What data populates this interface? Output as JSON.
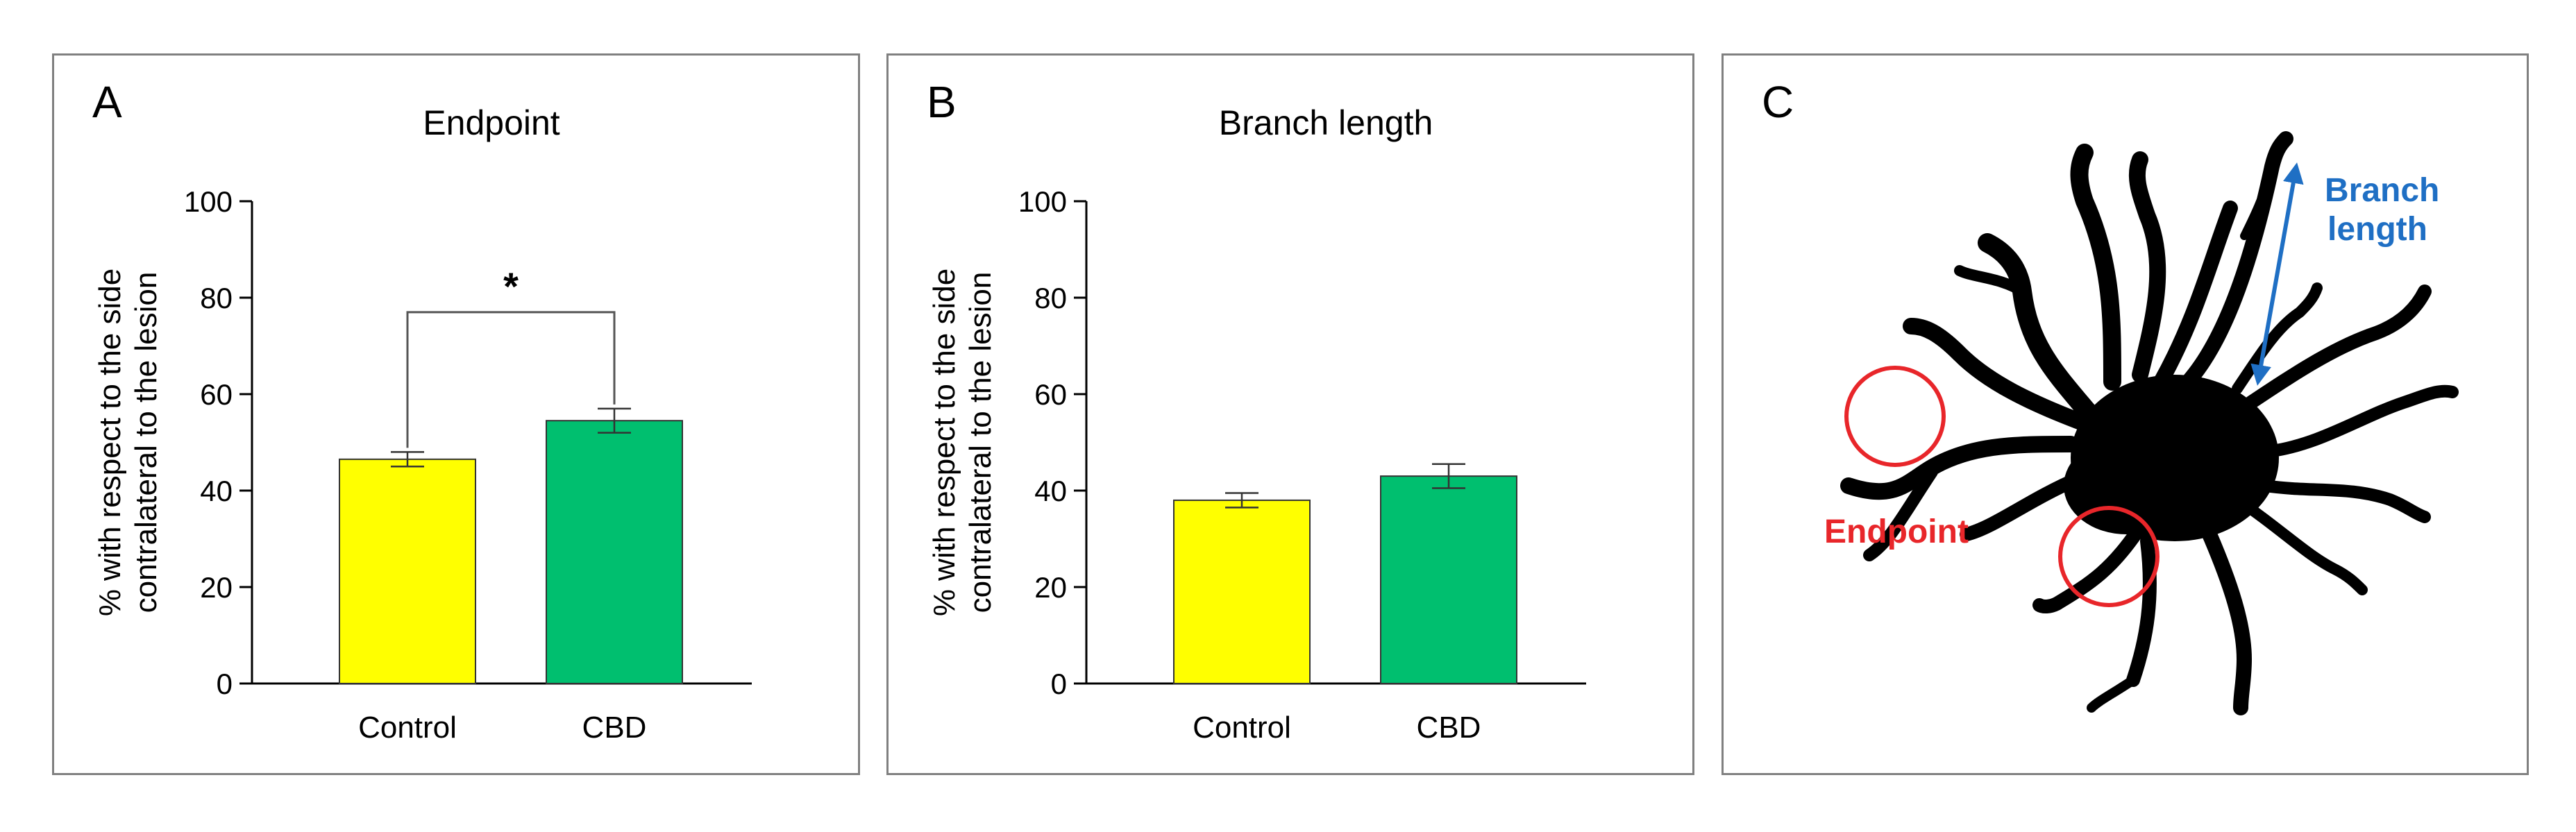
{
  "chart_data": [
    {
      "type": "bar",
      "panel_label": "A",
      "title": "Endpoint",
      "categories": [
        "Control",
        "CBD"
      ],
      "values": [
        46.5,
        54.5
      ],
      "errors": [
        1.5,
        2.5
      ],
      "bar_colors": [
        "#ffff00",
        "#00bf6f"
      ],
      "ylabel": [
        "% with respect to the side",
        "contralateral to the lesion"
      ],
      "ylim": [
        0,
        100
      ],
      "yticks": [
        "0",
        "20",
        "40",
        "60",
        "80",
        "100"
      ],
      "significance": {
        "label": "*",
        "between": [
          0,
          1
        ],
        "bracket_y": 77
      }
    },
    {
      "type": "bar",
      "panel_label": "B",
      "title": "Branch length",
      "categories": [
        "Control",
        "CBD"
      ],
      "values": [
        38,
        43
      ],
      "errors": [
        1.5,
        2.5
      ],
      "bar_colors": [
        "#ffff00",
        "#00bf6f"
      ],
      "ylabel": [
        "% with respect to the side",
        "contralateral to the lesion"
      ],
      "ylim": [
        0,
        100
      ],
      "yticks": [
        "0",
        "20",
        "40",
        "60",
        "80",
        "100"
      ]
    }
  ],
  "diagram": {
    "panel_label": "C",
    "branch_label": [
      "Branch",
      "length"
    ],
    "endpoint_label": "Endpoint",
    "branch_color": "#1f6fc4",
    "endpoint_color": "#e8262a"
  }
}
